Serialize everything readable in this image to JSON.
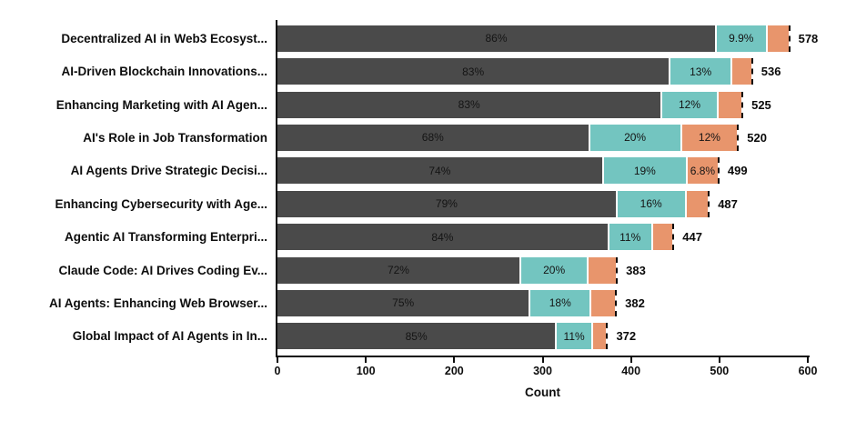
{
  "chart_data": {
    "type": "bar",
    "orientation": "horizontal",
    "stacked": true,
    "title": "",
    "xlabel": "Count",
    "ylabel": "",
    "xlim": [
      0,
      600
    ],
    "xticks": [
      "0",
      "100",
      "200",
      "300",
      "400",
      "500",
      "600"
    ],
    "grid": false,
    "colors": {
      "primary": "#4a4a4a",
      "secondary": "#73c5c0",
      "tertiary": "#e8956c",
      "axis": "#0d0d0d",
      "background": "#ffffff"
    },
    "rows": [
      {
        "label": "Decentralized AI in Web3 Ecosyst...",
        "total": 578,
        "segments": [
          {
            "pct": 86,
            "text": "86%"
          },
          {
            "pct": 9.9,
            "text": "9.9%"
          },
          {
            "pct": 4.1,
            "text": ""
          }
        ]
      },
      {
        "label": "AI-Driven Blockchain Innovations...",
        "total": 536,
        "segments": [
          {
            "pct": 83,
            "text": "83%"
          },
          {
            "pct": 13,
            "text": "13%"
          },
          {
            "pct": 4.0,
            "text": ""
          }
        ]
      },
      {
        "label": "Enhancing Marketing with AI Agen...",
        "total": 525,
        "segments": [
          {
            "pct": 83,
            "text": "83%"
          },
          {
            "pct": 12,
            "text": "12%"
          },
          {
            "pct": 5.0,
            "text": ""
          }
        ]
      },
      {
        "label": "AI's Role in Job Transformation",
        "total": 520,
        "segments": [
          {
            "pct": 68,
            "text": "68%"
          },
          {
            "pct": 20,
            "text": "20%"
          },
          {
            "pct": 12,
            "text": "12%"
          }
        ]
      },
      {
        "label": "AI Agents Drive Strategic Decisi...",
        "total": 499,
        "segments": [
          {
            "pct": 74,
            "text": "74%"
          },
          {
            "pct": 19,
            "text": "19%"
          },
          {
            "pct": 6.8,
            "text": "6.8%"
          }
        ]
      },
      {
        "label": "Enhancing Cybersecurity with Age...",
        "total": 487,
        "segments": [
          {
            "pct": 79,
            "text": "79%"
          },
          {
            "pct": 16,
            "text": "16%"
          },
          {
            "pct": 5.0,
            "text": ""
          }
        ]
      },
      {
        "label": "Agentic AI Transforming Enterpri...",
        "total": 447,
        "segments": [
          {
            "pct": 84,
            "text": "84%"
          },
          {
            "pct": 11,
            "text": "11%"
          },
          {
            "pct": 5.0,
            "text": ""
          }
        ]
      },
      {
        "label": "Claude Code: AI Drives Coding Ev...",
        "total": 383,
        "segments": [
          {
            "pct": 72,
            "text": "72%"
          },
          {
            "pct": 20,
            "text": "20%"
          },
          {
            "pct": 8.0,
            "text": ""
          }
        ]
      },
      {
        "label": "AI Agents: Enhancing Web Browser...",
        "total": 382,
        "segments": [
          {
            "pct": 75,
            "text": "75%"
          },
          {
            "pct": 18,
            "text": "18%"
          },
          {
            "pct": 7.0,
            "text": ""
          }
        ]
      },
      {
        "label": "Global Impact of AI Agents in In...",
        "total": 372,
        "segments": [
          {
            "pct": 85,
            "text": "85%"
          },
          {
            "pct": 11,
            "text": "11%"
          },
          {
            "pct": 4.0,
            "text": ""
          }
        ]
      }
    ]
  }
}
